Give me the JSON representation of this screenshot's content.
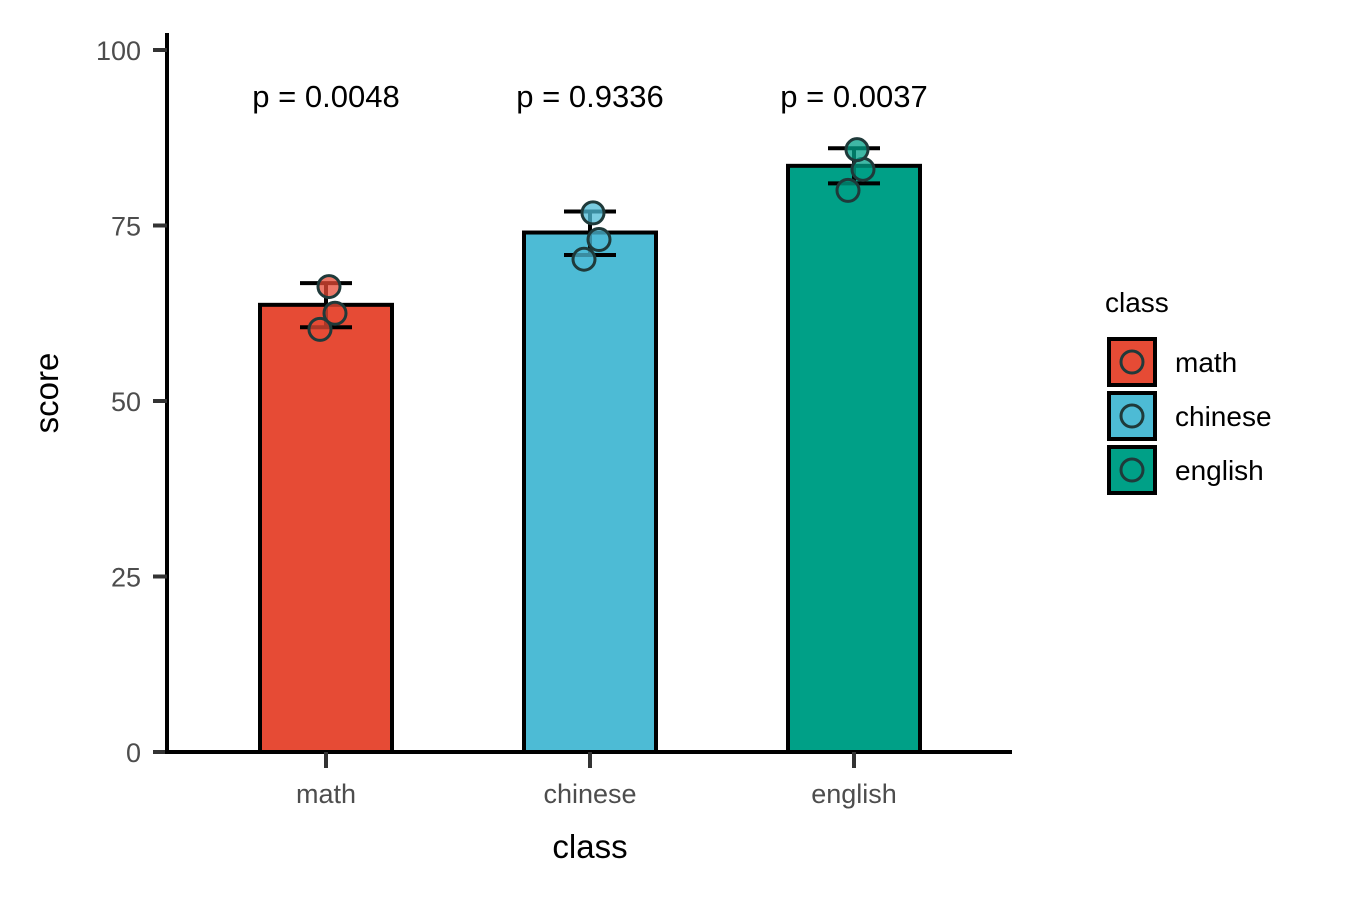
{
  "chart_data": {
    "type": "bar",
    "xlabel": "class",
    "ylabel": "score",
    "ylim": [
      0,
      100
    ],
    "yticks": [
      0,
      25,
      50,
      75,
      100
    ],
    "categories": [
      "math",
      "chinese",
      "english"
    ],
    "values": [
      63.7,
      74.0,
      83.5
    ],
    "error_bars": [
      {
        "low": 60.5,
        "high": 66.8
      },
      {
        "low": 70.8,
        "high": 77.0
      },
      {
        "low": 81.0,
        "high": 86.0
      }
    ],
    "points": [
      [
        60.2,
        62.5,
        66.3
      ],
      [
        70.2,
        73.0,
        76.8
      ],
      [
        80.0,
        83.0,
        85.8
      ]
    ],
    "annotations": [
      "p = 0.0048",
      "p = 0.9336",
      "p = 0.0037"
    ],
    "colors": [
      "#E64B35",
      "#4DBBD5",
      "#00A087"
    ],
    "grid": false,
    "legend": {
      "title": "class",
      "placement": "right",
      "entries": [
        "math",
        "chinese",
        "english"
      ]
    }
  }
}
